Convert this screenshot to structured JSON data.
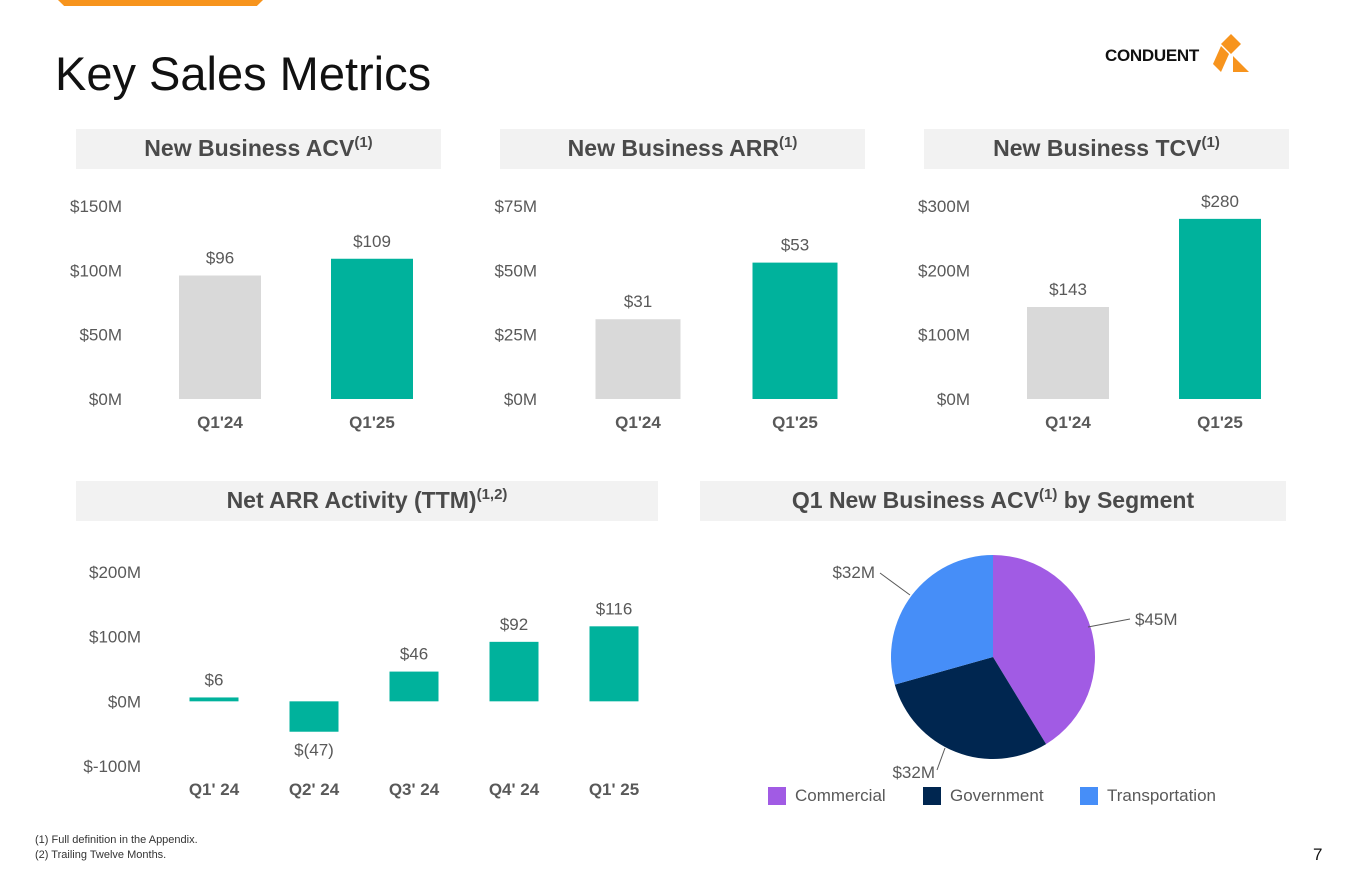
{
  "header": {
    "title": "Key Sales Metrics",
    "logo_text": "CONDUENT"
  },
  "colors": {
    "accent": "#f7941d",
    "teal": "#00b29c",
    "gray_bar": "#d9d9d9",
    "commercial": "#a15be4",
    "government": "#002650",
    "transportation": "#468ef8"
  },
  "panels": {
    "acv": {
      "title": "New Business ACV",
      "sup": "(1)"
    },
    "arr": {
      "title": "New Business ARR",
      "sup": "(1)"
    },
    "tcv": {
      "title": "New Business TCV",
      "sup": "(1)"
    },
    "net": {
      "title": "Net ARR Activity (TTM)",
      "sup": "(1,2)"
    },
    "seg": {
      "title": "Q1 New Business ACV",
      "sup": "(1)",
      "title_suffix": " by Segment"
    }
  },
  "chart_data": [
    {
      "id": "acv",
      "type": "bar",
      "title": "New Business ACV(1)",
      "categories": [
        "Q1'24",
        "Q1'25"
      ],
      "values": [
        96,
        109
      ],
      "data_labels": [
        "$96",
        "$109"
      ],
      "bar_colors": [
        "#d9d9d9",
        "#00b29c"
      ],
      "ylim": [
        0,
        150
      ],
      "yticks": [
        150,
        100,
        50,
        0
      ],
      "ytick_labels": [
        "$150M",
        "$100M",
        "$50M",
        "$0M"
      ]
    },
    {
      "id": "arr",
      "type": "bar",
      "title": "New Business ARR(1)",
      "categories": [
        "Q1'24",
        "Q1'25"
      ],
      "values": [
        31,
        53
      ],
      "data_labels": [
        "$31",
        "$53"
      ],
      "bar_colors": [
        "#d9d9d9",
        "#00b29c"
      ],
      "ylim": [
        0,
        75
      ],
      "yticks": [
        75,
        50,
        25,
        0
      ],
      "ytick_labels": [
        "$75M",
        "$50M",
        "$25M",
        "$0M"
      ]
    },
    {
      "id": "tcv",
      "type": "bar",
      "title": "New Business TCV(1)",
      "categories": [
        "Q1'24",
        "Q1'25"
      ],
      "values": [
        143,
        280
      ],
      "data_labels": [
        "$143",
        "$280"
      ],
      "bar_colors": [
        "#d9d9d9",
        "#00b29c"
      ],
      "ylim": [
        0,
        300
      ],
      "yticks": [
        300,
        200,
        100,
        0
      ],
      "ytick_labels": [
        "$300M",
        "$200M",
        "$100M",
        "$0M"
      ]
    },
    {
      "id": "net",
      "type": "bar",
      "title": "Net ARR Activity (TTM)(1,2)",
      "categories": [
        "Q1' 24",
        "Q2' 24",
        "Q3' 24",
        "Q4' 24",
        "Q1' 25"
      ],
      "values": [
        6,
        -47,
        46,
        92,
        116
      ],
      "data_labels": [
        "$6",
        "$(47)",
        "$46",
        "$92",
        "$116"
      ],
      "bar_colors": [
        "#00b29c",
        "#00b29c",
        "#00b29c",
        "#00b29c",
        "#00b29c"
      ],
      "ylim": [
        -100,
        200
      ],
      "yticks": [
        200,
        100,
        0,
        -100
      ],
      "ytick_labels": [
        "$200M",
        "$100M",
        "$0M",
        "$-100M"
      ]
    },
    {
      "id": "seg",
      "type": "pie",
      "title": "Q1 New Business ACV(1) by Segment",
      "labels": [
        "Commercial",
        "Government",
        "Transportation"
      ],
      "values": [
        45,
        32,
        32
      ],
      "data_labels": [
        "$45M",
        "$32M",
        "$32M"
      ],
      "colors": [
        "#a15be4",
        "#002650",
        "#468ef8"
      ]
    }
  ],
  "footnotes": [
    "(1) Full definition in the Appendix.",
    "(2) Trailing Twelve Months."
  ],
  "page_number": "7"
}
